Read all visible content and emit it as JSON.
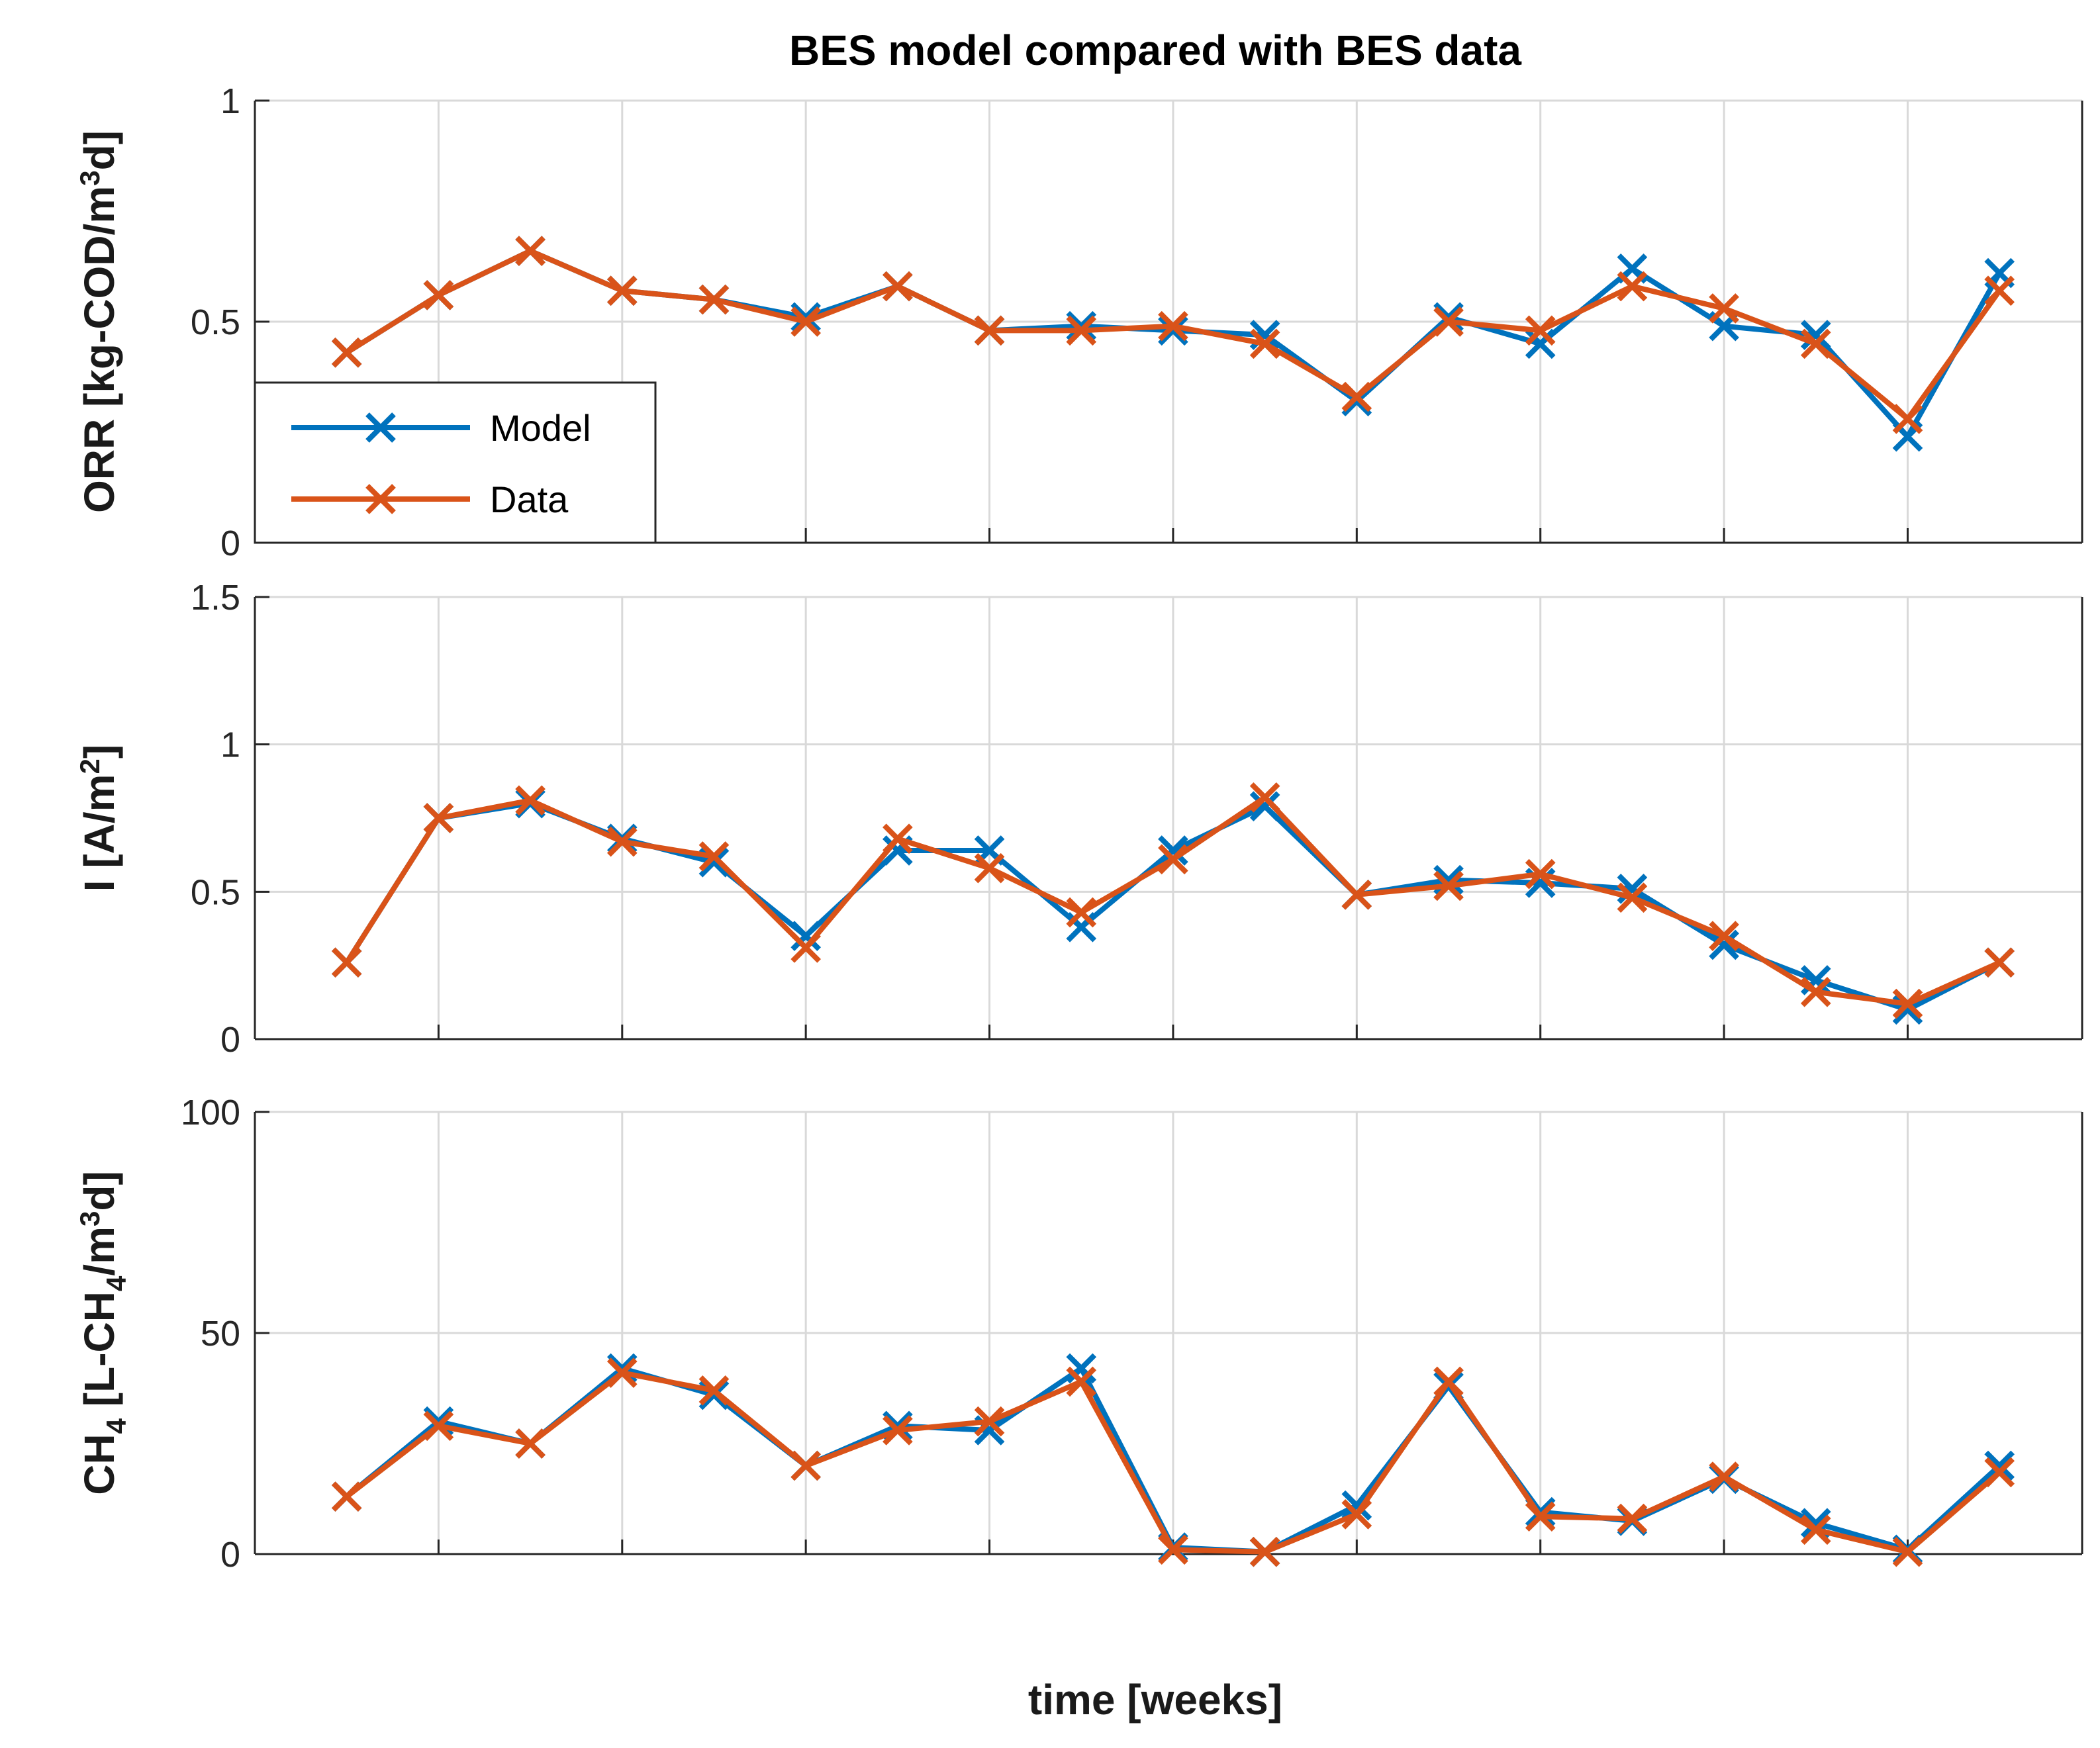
{
  "colors": {
    "model": "#0072BD",
    "data": "#D95319",
    "grid": "#d9d9d9",
    "axis": "#262626"
  },
  "chart_data": {
    "title": "BES model compared with BES data",
    "xlabel": "time [weeks]",
    "type": "line",
    "x": [
      1,
      2,
      3,
      4,
      5,
      6,
      7,
      8,
      9,
      10,
      11,
      12,
      13,
      14,
      15,
      16,
      17,
      18,
      19
    ],
    "xlim": [
      0,
      19.9
    ],
    "xgrid": [
      2,
      4,
      6,
      8,
      10,
      12,
      14,
      16,
      18
    ],
    "legend": {
      "entries": [
        "Model",
        "Data"
      ],
      "location": "bottom-left",
      "panel": 0
    },
    "panels": [
      {
        "ylabel_parts": [
          "ORR [kg-COD/m",
          "3",
          "d]"
        ],
        "ylim": [
          0,
          1
        ],
        "yticks": [
          0,
          0.5,
          1
        ],
        "ytick_labels": [
          "0",
          "0.5",
          "1"
        ],
        "series": [
          {
            "name": "Model",
            "values": [
              0.43,
              0.56,
              0.66,
              0.57,
              0.55,
              0.51,
              0.58,
              0.48,
              0.49,
              0.48,
              0.47,
              0.32,
              0.51,
              0.45,
              0.62,
              0.49,
              0.47,
              0.24,
              0.61
            ]
          },
          {
            "name": "Data",
            "values": [
              0.43,
              0.56,
              0.66,
              0.57,
              0.55,
              0.5,
              0.58,
              0.48,
              0.48,
              0.49,
              0.45,
              0.33,
              0.5,
              0.48,
              0.58,
              0.53,
              0.45,
              0.28,
              0.57
            ]
          }
        ]
      },
      {
        "ylabel_parts": [
          "I [A/m",
          "2",
          "]"
        ],
        "ylim": [
          0,
          1.5
        ],
        "yticks": [
          0,
          0.5,
          1,
          1.5
        ],
        "ytick_labels": [
          "0",
          "0.5",
          "1",
          "1.5"
        ],
        "series": [
          {
            "name": "Model",
            "values": [
              0.26,
              0.75,
              0.8,
              0.68,
              0.6,
              0.35,
              0.64,
              0.64,
              0.38,
              0.64,
              0.79,
              0.49,
              0.54,
              0.53,
              0.51,
              0.32,
              0.2,
              0.1,
              0.26
            ]
          },
          {
            "name": "Data",
            "values": [
              0.26,
              0.75,
              0.81,
              0.67,
              0.62,
              0.31,
              0.68,
              0.58,
              0.43,
              0.61,
              0.82,
              0.49,
              0.52,
              0.56,
              0.48,
              0.35,
              0.16,
              0.12,
              0.26
            ]
          }
        ]
      },
      {
        "ylabel_parts": [
          "CH",
          "4",
          " [L-CH",
          "4",
          "/m",
          "3",
          "d]"
        ],
        "ylim": [
          0,
          100
        ],
        "yticks": [
          0,
          50,
          100
        ],
        "ytick_labels": [
          "0",
          "50",
          "100"
        ],
        "series": [
          {
            "name": "Model",
            "values": [
              13,
              30,
              25,
              42,
              36,
              20,
              29,
              28,
              42,
              1.5,
              0.5,
              11,
              38,
              9.5,
              7.5,
              17,
              7,
              1,
              20
            ]
          },
          {
            "name": "Data",
            "values": [
              13,
              29,
              25,
              41,
              37,
              20,
              28,
              30,
              39,
              1,
              0.5,
              9,
              39,
              8.5,
              8,
              17.5,
              5.5,
              0.5,
              18.5
            ]
          }
        ]
      }
    ]
  }
}
